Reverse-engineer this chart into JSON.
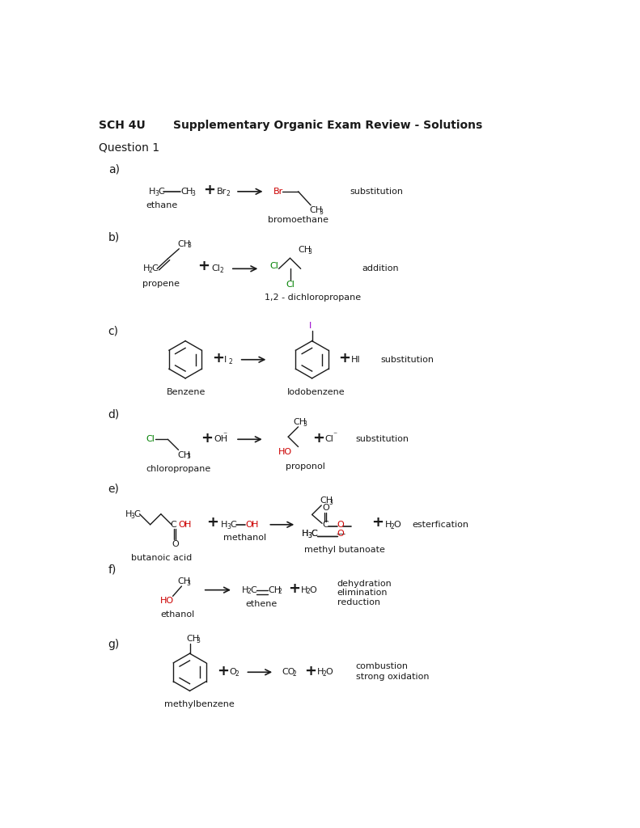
{
  "title": "Supplementary Organic Exam Review - Solutions",
  "course": "SCH 4U",
  "question": "Question 1",
  "bg_color": "#ffffff",
  "text_color": "#1a1a1a",
  "red_color": "#cc0000",
  "green_color": "#008000",
  "purple_color": "#9900cc"
}
